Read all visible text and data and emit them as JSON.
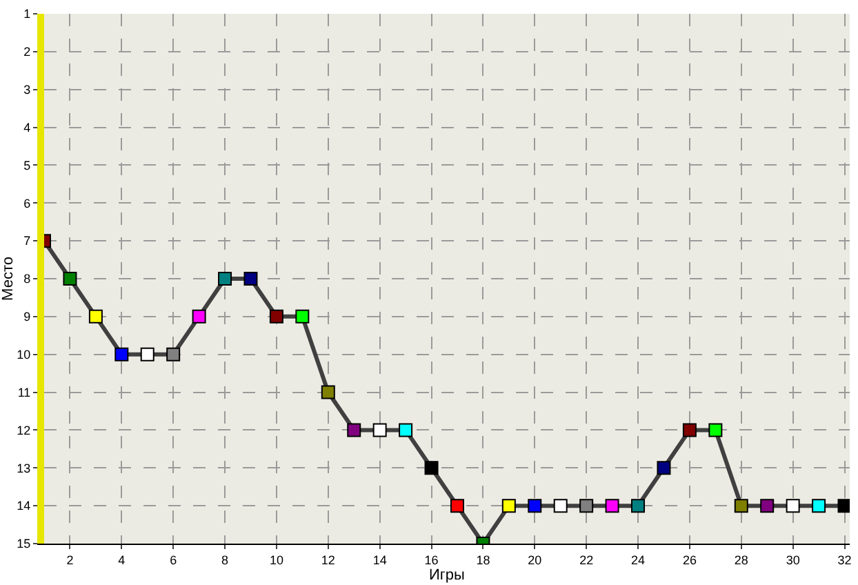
{
  "chart_data": {
    "type": "line",
    "xlabel": "Игры",
    "ylabel": "Место",
    "x": [
      1,
      2,
      3,
      4,
      5,
      6,
      7,
      8,
      9,
      10,
      11,
      12,
      13,
      14,
      15,
      16,
      17,
      18,
      19,
      20,
      21,
      22,
      23,
      24,
      25,
      26,
      27,
      28,
      29,
      30,
      31,
      32
    ],
    "series": [
      {
        "color": "#404040",
        "values": [
          7,
          8,
          9,
          10,
          10,
          10,
          9,
          8,
          8,
          9,
          9,
          11,
          12,
          12,
          12,
          13,
          14,
          15,
          14,
          14,
          14,
          14,
          14,
          14,
          13,
          12,
          12,
          14,
          14,
          14,
          14,
          14
        ],
        "colors": [
          "#800000",
          "#008000",
          "#ffff00",
          "#0000ff",
          "#ffffff",
          "#808080",
          "#ff00ff",
          "#008080",
          "#000080",
          "#800000",
          "#00ff00",
          "#808000",
          "#800080",
          "#ffffff",
          "#00ffff",
          "#000000",
          "#ff0000",
          "#008000",
          "#ffff00",
          "#0000ff",
          "#ffffff",
          "#808080",
          "#ff00ff",
          "#008080",
          "#000080",
          "#800000",
          "#00ff00",
          "#808000",
          "#800080",
          "#ffffff",
          "#00ffff",
          "#000000"
        ]
      }
    ],
    "xlim": [
      1,
      32.2
    ],
    "xticks": [
      2,
      4,
      6,
      8,
      10,
      12,
      14,
      16,
      18,
      20,
      22,
      24,
      26,
      28,
      30,
      32
    ],
    "ylim": [
      15,
      1
    ],
    "yticks": [
      1,
      2,
      3,
      4,
      5,
      6,
      7,
      8,
      9,
      10,
      11,
      12,
      13,
      14,
      15
    ],
    "grid": true,
    "marker": "square"
  }
}
